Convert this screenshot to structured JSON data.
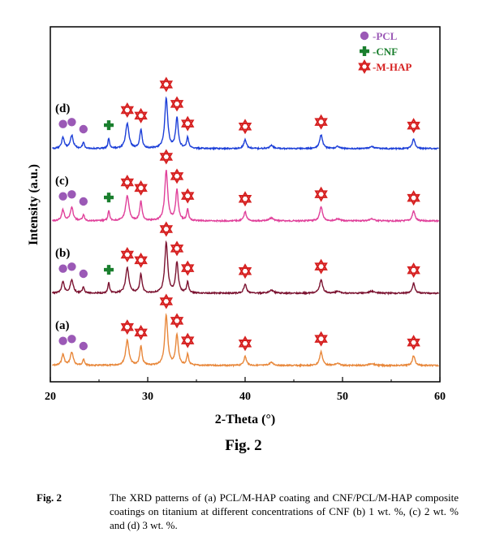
{
  "chart_data": {
    "type": "line",
    "title": "",
    "xlabel": "2-Theta (°)",
    "ylabel": "Intensity (a.u.)",
    "xlim": [
      20,
      60
    ],
    "xticks": [
      20,
      30,
      40,
      50,
      60
    ],
    "y_units": "arbitrary",
    "grid": false,
    "legend_position": "top-right",
    "legend": [
      {
        "label": "-PCL",
        "marker": "circle",
        "color": "#9b59b6"
      },
      {
        "label": "-CNF",
        "marker": "cross",
        "color": "#1a7f2e"
      },
      {
        "label": "-M-HAP",
        "marker": "star",
        "color": "#d62020"
      }
    ],
    "peaks": {
      "PCL": [
        21.3,
        22.2,
        23.4
      ],
      "CNF": [
        26.0
      ],
      "M-HAP": [
        27.9,
        29.3,
        31.9,
        33.0,
        34.1,
        40.0,
        47.8,
        57.3
      ]
    },
    "series": [
      {
        "name": "(a)",
        "color": "#e8873a",
        "baseline": 0.0,
        "cnf": false
      },
      {
        "name": "(b)",
        "color": "#7b1230",
        "baseline": 1.0,
        "cnf": true
      },
      {
        "name": "(c)",
        "color": "#e0409a",
        "baseline": 2.0,
        "cnf": true
      },
      {
        "name": "(d)",
        "color": "#1c3fd8",
        "baseline": 3.0,
        "cnf": true
      }
    ]
  },
  "figure": {
    "title": "Fig. 2",
    "caption_label": "Fig. 2",
    "caption_text": "The XRD patterns of (a) PCL/M-HAP coating and CNF/PCL/M-HAP composite coatings on titanium at different concentrations of CNF (b) 1 wt. %, (c) 2 wt. % and (d) 3 wt. %."
  }
}
